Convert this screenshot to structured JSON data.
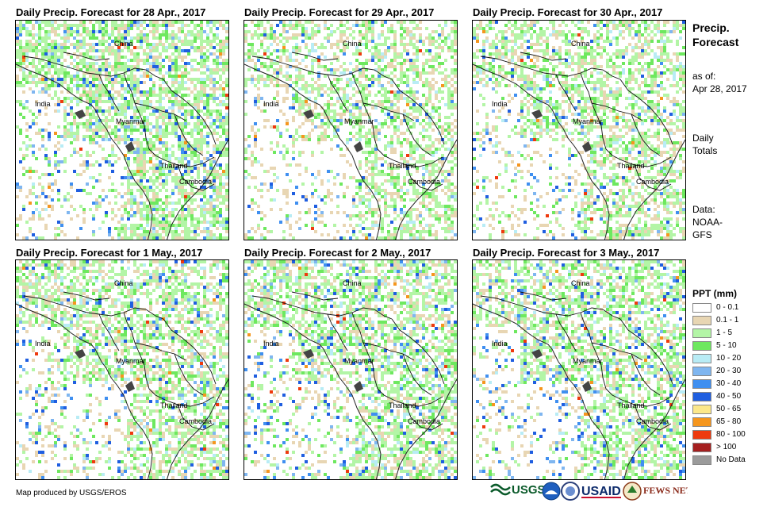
{
  "panels": [
    {
      "title": "Daily Precip. Forecast for 28 Apr., 2017",
      "seed": 11,
      "rain": 0.55,
      "heavy": 0.06
    },
    {
      "title": "Daily Precip. Forecast for 29 Apr., 2017",
      "seed": 23,
      "rain": 0.4,
      "heavy": 0.03
    },
    {
      "title": "Daily Precip. Forecast for 30 Apr., 2017",
      "seed": 37,
      "rain": 0.42,
      "heavy": 0.03
    },
    {
      "title": "Daily Precip. Forecast for 1 May., 2017",
      "seed": 41,
      "rain": 0.45,
      "heavy": 0.04
    },
    {
      "title": "Daily Precip. Forecast for 2 May., 2017",
      "seed": 53,
      "rain": 0.48,
      "heavy": 0.05
    },
    {
      "title": "Daily Precip. Forecast for 3 May., 2017",
      "seed": 67,
      "rain": 0.45,
      "heavy": 0.06
    }
  ],
  "place_labels": {
    "china": "China",
    "india": "India",
    "myanmar": "Myanmar",
    "thailand": "Thailand",
    "cambodia": "Cambodia"
  },
  "sidebar": {
    "title_line1": "Precip.",
    "title_line2": "Forecast",
    "asof_label": "as of:",
    "asof_date": "Apr 28, 2017",
    "totals_line1": "Daily",
    "totals_line2": "Totals",
    "data_line1": "Data:",
    "data_line2": "NOAA-",
    "data_line3": "GFS"
  },
  "legend": {
    "title": "PPT (mm)",
    "items": [
      {
        "label": "0 - 0.1",
        "color": "#ffffff"
      },
      {
        "label": "0.1 - 1",
        "color": "#e8d6b3"
      },
      {
        "label": "1 - 5",
        "color": "#b3f5a6"
      },
      {
        "label": "5 - 10",
        "color": "#6ee85f"
      },
      {
        "label": "10 - 20",
        "color": "#b8ecf5"
      },
      {
        "label": "20 - 30",
        "color": "#7fb6f0"
      },
      {
        "label": "30 - 40",
        "color": "#3f8ff0"
      },
      {
        "label": "40 - 50",
        "color": "#1f5ee0"
      },
      {
        "label": "50 - 65",
        "color": "#fce88a"
      },
      {
        "label": "65 - 80",
        "color": "#f5961e"
      },
      {
        "label": "80 - 100",
        "color": "#ee3a0e"
      },
      {
        "label": "> 100",
        "color": "#a51f1f"
      },
      {
        "label": "No Data",
        "color": "#9b9b9b"
      }
    ]
  },
  "footer": {
    "credit": "Map produced by USGS/EROS"
  },
  "logos": {
    "usgs": "USGS",
    "usaid": "USAID",
    "fewsnet": "FEWS NET"
  }
}
